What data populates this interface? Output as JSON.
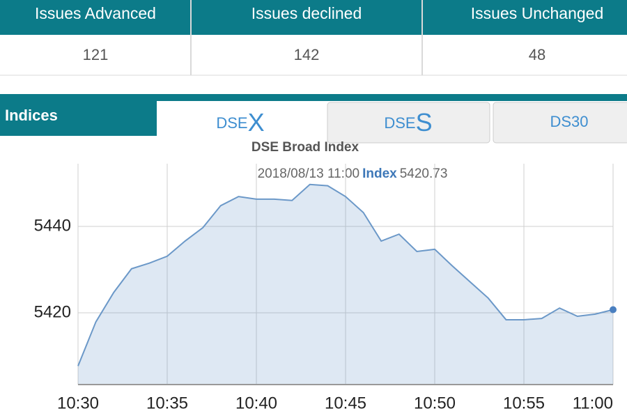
{
  "stats_table": {
    "headers": [
      "Issues Advanced",
      "Issues declined",
      "Issues Unchanged"
    ],
    "values": [
      121,
      142,
      48
    ]
  },
  "indices": {
    "label": "Indices",
    "tabs": [
      {
        "prefix": "DSE",
        "suffix": "X"
      },
      {
        "prefix": "DSE",
        "suffix": "S"
      },
      {
        "prefix": "DS30"
      }
    ]
  },
  "chart_data": {
    "type": "area",
    "title": "DSE Broad Index",
    "tooltip": {
      "date": "2018/08/13 11:00"
    },
    "x": [
      630,
      631,
      632,
      633,
      634,
      635,
      636,
      637,
      638,
      639,
      640,
      641,
      642,
      643,
      644,
      645,
      646,
      647,
      648,
      649,
      650,
      651,
      652,
      653,
      654,
      655,
      656,
      657,
      658,
      659,
      660
    ],
    "series": [
      {
        "name": "Index",
        "color": "#6b98c8",
        "values": [
          5407.7,
          5417.9,
          5424.7,
          5430.2,
          5431.5,
          5433.1,
          5436.6,
          5439.7,
          5444.8,
          5446.9,
          5446.3,
          5446.3,
          5446.0,
          5449.7,
          5449.4,
          5446.9,
          5443.2,
          5436.6,
          5438.2,
          5434.2,
          5434.7,
          5430.8,
          5427.1,
          5423.4,
          5418.4,
          5418.4,
          5418.7,
          5421.1,
          5419.2,
          5419.7,
          5420.73
        ]
      }
    ],
    "xlim": [
      630,
      660
    ],
    "xticks": [
      {
        "value": 630,
        "label": "10:30"
      },
      {
        "value": 635,
        "label": "10:35"
      },
      {
        "value": 640,
        "label": "10:40"
      },
      {
        "value": 645,
        "label": "10:45"
      },
      {
        "value": 650,
        "label": "10:50"
      },
      {
        "value": 655,
        "label": "10:55"
      },
      {
        "value": 660,
        "label": "11:00"
      }
    ],
    "ylim": [
      5403.4,
      5454.5
    ],
    "yticks": [
      5420,
      5440
    ],
    "grid": true
  }
}
